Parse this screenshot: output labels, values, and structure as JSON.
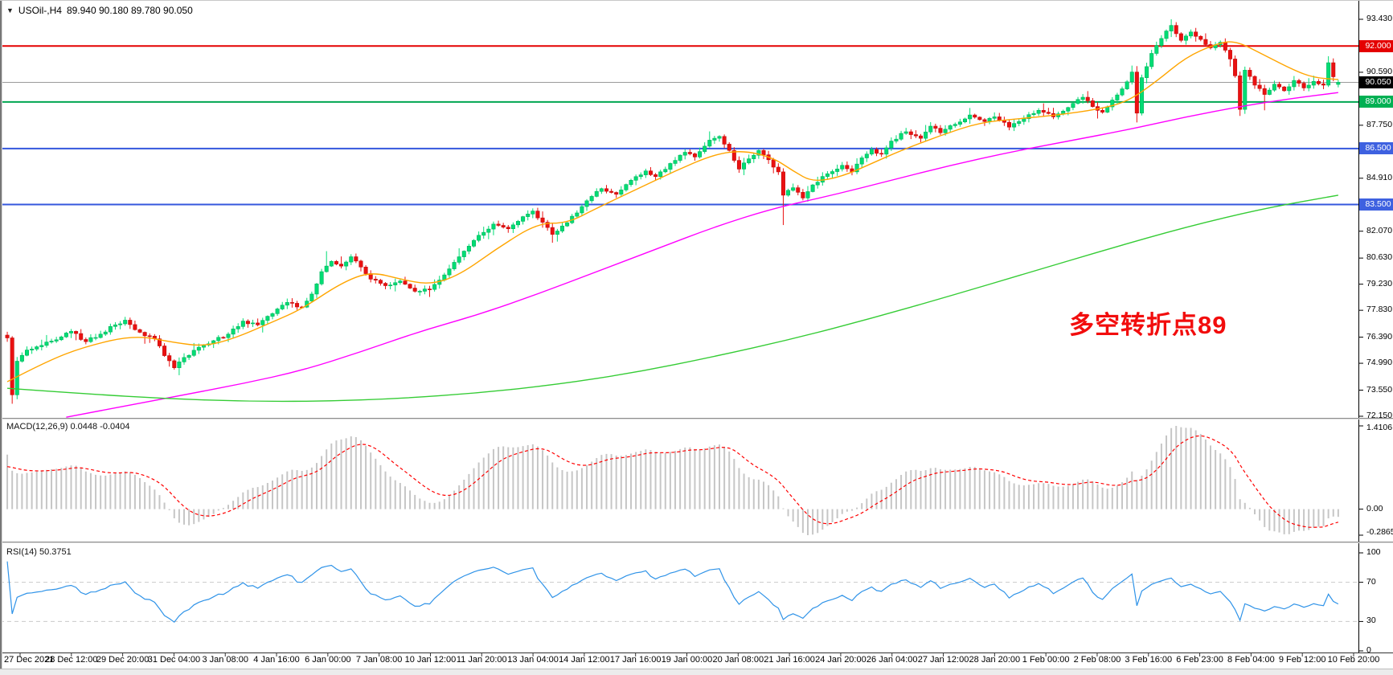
{
  "header": {
    "collapse_icon": "▼",
    "symbol": "USOil-,H4",
    "ohlc": "89.940 90.180 89.780 90.050"
  },
  "indicators": {
    "macd": {
      "label": "MACD(12,26,9) 0.0448 -0.0404",
      "name": "MACD",
      "params": "12,26,9",
      "value_main": "0.0448",
      "value_signal": "-0.0404",
      "scale_max": "1.4106",
      "scale_zero": "0.00",
      "scale_min": "-0.2865",
      "signal_color": "#ff0000",
      "hist_color": "#c6c6c6"
    },
    "rsi": {
      "label": "RSI(14) 50.3751",
      "name": "RSI",
      "params": "14",
      "value": "50.3751",
      "levels": [
        "100",
        "70",
        "30",
        "0"
      ],
      "dashed_levels": [
        70,
        30
      ],
      "line_color": "#2f93e8"
    }
  },
  "chart_data": {
    "type": "candlestick",
    "symbol": "USOil-",
    "timeframe": "H4",
    "title": "USOil-,H4 89.940 90.180 89.780 90.050",
    "last_candle": {
      "open": 89.94,
      "high": 90.18,
      "low": 89.78,
      "close": 90.05
    },
    "bars": 272,
    "y_map": {
      "p_top": 93.43,
      "y_top": 23,
      "p_bot": 72.15,
      "y_bot": 517
    },
    "y_ticks": [
      93.43,
      90.59,
      87.75,
      84.91,
      82.07,
      80.63,
      79.23,
      77.83,
      76.39,
      74.99,
      73.55,
      72.15
    ],
    "x_labels": [
      "27 Dec 2021",
      "28 Dec 12:00",
      "29 Dec 20:00",
      "31 Dec 04:00",
      "3 Jan 08:00",
      "4 Jan 16:00",
      "6 Jan 00:00",
      "7 Jan 08:00",
      "10 Jan 12:00",
      "11 Jan 20:00",
      "13 Jan 04:00",
      "14 Jan 12:00",
      "17 Jan 16:00",
      "19 Jan 00:00",
      "20 Jan 08:00",
      "21 Jan 16:00",
      "24 Jan 20:00",
      "26 Jan 04:00",
      "27 Jan 12:00",
      "28 Jan 20:00",
      "1 Feb 00:00",
      "2 Feb 08:00",
      "3 Feb 16:00",
      "6 Feb 23:00",
      "8 Feb 04:00",
      "9 Feb 12:00",
      "10 Feb 20:00"
    ],
    "colors": {
      "up": "#00dd74",
      "up_edge": "#00b35c",
      "down": "#ea1111",
      "down_edge": "#c40b0b",
      "axis": "#000000",
      "divider": "#8e8e8e",
      "current_line": "#9b9b9b"
    },
    "h_lines": [
      {
        "price": 92.0,
        "color": "#e40000",
        "width": 2,
        "badge": "92.000",
        "badge_bg": "#e40000",
        "current": false
      },
      {
        "price": 90.05,
        "color": "#9b9b9b",
        "width": 1,
        "badge": "90.050",
        "badge_bg": "#000000",
        "current": true
      },
      {
        "price": 89.0,
        "color": "#00a651",
        "width": 2,
        "badge": "89.000",
        "badge_bg": "#00b053",
        "current": false
      },
      {
        "price": 86.5,
        "color": "#3457dd",
        "width": 2,
        "badge": "86.500",
        "badge_bg": "#3e61e0",
        "current": false
      },
      {
        "price": 83.5,
        "color": "#3457dd",
        "width": 2,
        "badge": "83.500",
        "badge_bg": "#3e61e0",
        "current": false
      }
    ],
    "price_anchors": [
      [
        0,
        76.35
      ],
      [
        1,
        73.3
      ],
      [
        2,
        75.1
      ],
      [
        4,
        75.7
      ],
      [
        7,
        75.95
      ],
      [
        10,
        76.25
      ],
      [
        13,
        76.7
      ],
      [
        16,
        76.15
      ],
      [
        19,
        76.55
      ],
      [
        22,
        77.05
      ],
      [
        24,
        77.3
      ],
      [
        27,
        76.65
      ],
      [
        30,
        76.3
      ],
      [
        32,
        75.4
      ],
      [
        34,
        74.75
      ],
      [
        36,
        75.3
      ],
      [
        39,
        75.85
      ],
      [
        42,
        76.2
      ],
      [
        45,
        76.55
      ],
      [
        48,
        77.25
      ],
      [
        51,
        77.05
      ],
      [
        54,
        77.65
      ],
      [
        57,
        78.25
      ],
      [
        60,
        78.0
      ],
      [
        62,
        78.7
      ],
      [
        64,
        79.9
      ],
      [
        66,
        80.45
      ],
      [
        68,
        80.2
      ],
      [
        70,
        80.7
      ],
      [
        72,
        80.15
      ],
      [
        74,
        79.5
      ],
      [
        77,
        79.15
      ],
      [
        80,
        79.4
      ],
      [
        83,
        78.85
      ],
      [
        86,
        78.95
      ],
      [
        88,
        79.45
      ],
      [
        90,
        80.05
      ],
      [
        93,
        81.0
      ],
      [
        96,
        81.85
      ],
      [
        99,
        82.45
      ],
      [
        102,
        82.2
      ],
      [
        105,
        82.85
      ],
      [
        107,
        83.15
      ],
      [
        109,
        82.55
      ],
      [
        111,
        81.9
      ],
      [
        113,
        82.35
      ],
      [
        116,
        83.05
      ],
      [
        118,
        83.7
      ],
      [
        121,
        84.35
      ],
      [
        124,
        84.05
      ],
      [
        127,
        84.8
      ],
      [
        130,
        85.3
      ],
      [
        132,
        85.0
      ],
      [
        135,
        85.7
      ],
      [
        138,
        86.3
      ],
      [
        140,
        86.05
      ],
      [
        143,
        86.95
      ],
      [
        145,
        87.15
      ],
      [
        147,
        86.4
      ],
      [
        149,
        85.4
      ],
      [
        151,
        85.95
      ],
      [
        153,
        86.4
      ],
      [
        155,
        85.9
      ],
      [
        157,
        85.25
      ],
      [
        158,
        84.0
      ],
      [
        160,
        84.4
      ],
      [
        162,
        83.85
      ],
      [
        164,
        84.55
      ],
      [
        167,
        85.15
      ],
      [
        170,
        85.6
      ],
      [
        172,
        85.25
      ],
      [
        174,
        86.0
      ],
      [
        176,
        86.45
      ],
      [
        178,
        86.2
      ],
      [
        180,
        86.9
      ],
      [
        183,
        87.4
      ],
      [
        186,
        87.05
      ],
      [
        188,
        87.7
      ],
      [
        190,
        87.35
      ],
      [
        193,
        87.8
      ],
      [
        196,
        88.3
      ],
      [
        199,
        87.95
      ],
      [
        201,
        88.2
      ],
      [
        204,
        87.65
      ],
      [
        207,
        88.1
      ],
      [
        210,
        88.55
      ],
      [
        213,
        88.2
      ],
      [
        216,
        88.7
      ],
      [
        219,
        89.25
      ],
      [
        221,
        88.75
      ],
      [
        223,
        88.45
      ],
      [
        225,
        89.1
      ],
      [
        227,
        89.7
      ],
      [
        229,
        90.6
      ],
      [
        230,
        88.4
      ],
      [
        231,
        90.3
      ],
      [
        233,
        91.6
      ],
      [
        235,
        92.4
      ],
      [
        237,
        93.1
      ],
      [
        239,
        92.3
      ],
      [
        241,
        92.75
      ],
      [
        243,
        92.35
      ],
      [
        245,
        91.9
      ],
      [
        247,
        92.2
      ],
      [
        249,
        91.3
      ],
      [
        250,
        90.4
      ],
      [
        251,
        88.6
      ],
      [
        252,
        90.7
      ],
      [
        254,
        89.9
      ],
      [
        256,
        89.4
      ],
      [
        258,
        89.95
      ],
      [
        260,
        89.6
      ],
      [
        262,
        90.15
      ],
      [
        264,
        89.75
      ],
      [
        266,
        90.1
      ],
      [
        268,
        89.9
      ],
      [
        269,
        91.1
      ],
      [
        270,
        90.35
      ],
      [
        271,
        90.05
      ]
    ],
    "wick_events": [
      {
        "bar": 1,
        "low": 72.82
      },
      {
        "bar": 35,
        "low": 74.35
      },
      {
        "bar": 65,
        "high": 81.0
      },
      {
        "bar": 111,
        "low": 81.45
      },
      {
        "bar": 143,
        "high": 87.42
      },
      {
        "bar": 158,
        "low": 82.4
      },
      {
        "bar": 230,
        "low": 87.9
      },
      {
        "bar": 237,
        "high": 93.43
      },
      {
        "bar": 251,
        "low": 88.25
      },
      {
        "bar": 256,
        "low": 88.55
      },
      {
        "bar": 269,
        "high": 91.45
      }
    ],
    "ma_lines": [
      {
        "name": "ma-fast",
        "color": "#ffa500",
        "anchors": [
          [
            0,
            74.0
          ],
          [
            8,
            75.1
          ],
          [
            16,
            75.9
          ],
          [
            26,
            76.5
          ],
          [
            34,
            76.1
          ],
          [
            40,
            75.9
          ],
          [
            46,
            76.3
          ],
          [
            54,
            77.2
          ],
          [
            60,
            77.9
          ],
          [
            68,
            79.3
          ],
          [
            74,
            79.9
          ],
          [
            80,
            79.5
          ],
          [
            86,
            79.2
          ],
          [
            92,
            79.7
          ],
          [
            100,
            81.2
          ],
          [
            108,
            82.5
          ],
          [
            114,
            82.5
          ],
          [
            120,
            83.3
          ],
          [
            128,
            84.3
          ],
          [
            136,
            85.3
          ],
          [
            144,
            86.2
          ],
          [
            150,
            86.4
          ],
          [
            156,
            86.0
          ],
          [
            160,
            85.3
          ],
          [
            164,
            84.7
          ],
          [
            170,
            85.0
          ],
          [
            176,
            85.7
          ],
          [
            182,
            86.4
          ],
          [
            190,
            87.2
          ],
          [
            198,
            87.9
          ],
          [
            206,
            88.1
          ],
          [
            214,
            88.3
          ],
          [
            222,
            88.6
          ],
          [
            228,
            89.0
          ],
          [
            234,
            90.1
          ],
          [
            240,
            91.4
          ],
          [
            246,
            92.1
          ],
          [
            250,
            92.3
          ],
          [
            256,
            91.5
          ],
          [
            262,
            90.7
          ],
          [
            266,
            90.3
          ],
          [
            271,
            90.2
          ]
        ]
      },
      {
        "name": "ma-mid",
        "color": "#ff00ff",
        "anchors": [
          [
            12,
            72.1
          ],
          [
            24,
            72.7
          ],
          [
            36,
            73.3
          ],
          [
            48,
            73.9
          ],
          [
            60,
            74.6
          ],
          [
            72,
            75.6
          ],
          [
            84,
            76.7
          ],
          [
            96,
            77.6
          ],
          [
            108,
            78.7
          ],
          [
            120,
            79.9
          ],
          [
            132,
            81.1
          ],
          [
            144,
            82.3
          ],
          [
            156,
            83.3
          ],
          [
            168,
            84.0
          ],
          [
            180,
            84.8
          ],
          [
            192,
            85.6
          ],
          [
            204,
            86.3
          ],
          [
            216,
            86.9
          ],
          [
            228,
            87.5
          ],
          [
            240,
            88.2
          ],
          [
            252,
            88.8
          ],
          [
            262,
            89.2
          ],
          [
            271,
            89.5
          ]
        ]
      },
      {
        "name": "ma-slow",
        "color": "#35cc35",
        "anchors": [
          [
            0,
            73.65
          ],
          [
            16,
            73.35
          ],
          [
            32,
            73.1
          ],
          [
            48,
            72.95
          ],
          [
            64,
            72.95
          ],
          [
            80,
            73.1
          ],
          [
            96,
            73.4
          ],
          [
            112,
            73.85
          ],
          [
            128,
            74.5
          ],
          [
            144,
            75.35
          ],
          [
            160,
            76.3
          ],
          [
            176,
            77.4
          ],
          [
            192,
            78.6
          ],
          [
            208,
            79.85
          ],
          [
            224,
            81.1
          ],
          [
            240,
            82.3
          ],
          [
            256,
            83.3
          ],
          [
            271,
            84.0
          ]
        ]
      }
    ],
    "annotation": {
      "text": "多空转折点89",
      "color": "#f20d0d"
    }
  }
}
